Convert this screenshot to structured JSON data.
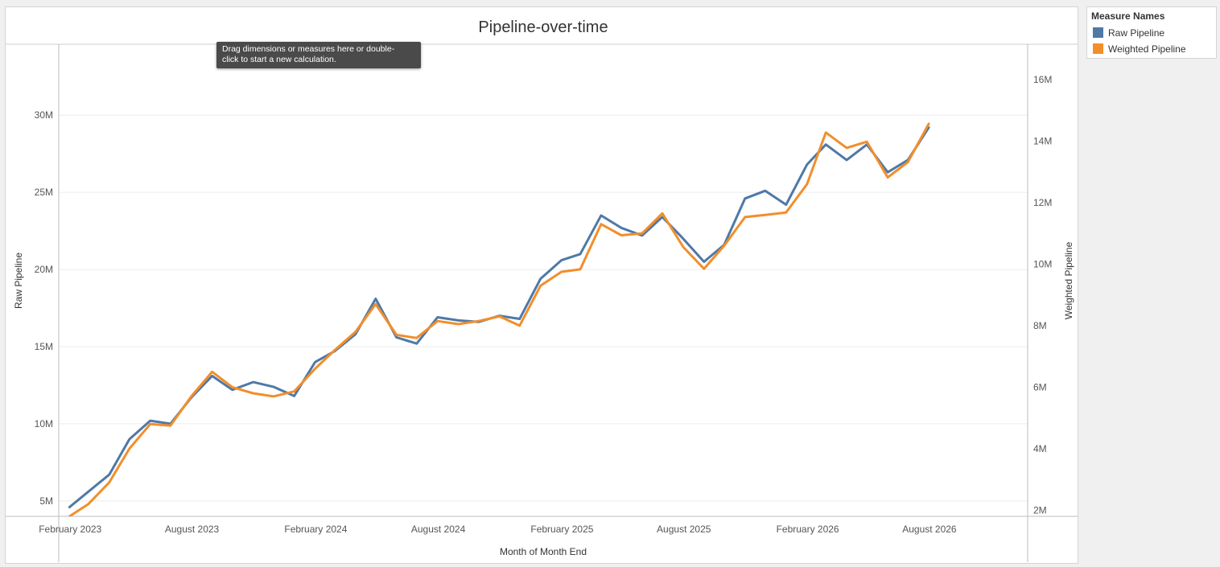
{
  "legend": {
    "title": "Measure Names",
    "items": [
      {
        "label": "Raw Pipeline",
        "color": "#4e79a7"
      },
      {
        "label": "Weighted Pipeline",
        "color": "#f28e2b"
      }
    ]
  },
  "tooltip": {
    "line1": "Drag dimensions or measures here or double-",
    "line2": "click to start a new calculation."
  },
  "chart_data": {
    "type": "line",
    "title": "Pipeline-over-time",
    "xlabel": "Month of Month End",
    "ylabel": "Raw Pipeline",
    "y2label": "Weighted Pipeline",
    "x_tick_labels": [
      "February 2023",
      "August 2023",
      "February 2024",
      "August 2024",
      "February 2025",
      "August 2025",
      "February 2026",
      "August 2026"
    ],
    "y_tick_labels": [
      "5M",
      "10M",
      "15M",
      "20M",
      "25M",
      "30M"
    ],
    "y2_tick_labels": [
      "2M",
      "4M",
      "6M",
      "8M",
      "10M",
      "12M",
      "14M",
      "16M"
    ],
    "y_ticks": [
      5000000,
      10000000,
      15000000,
      20000000,
      25000000,
      30000000
    ],
    "y2_ticks": [
      2000000,
      4000000,
      6000000,
      8000000,
      10000000,
      12000000,
      14000000,
      16000000
    ],
    "ylim": [
      4000000,
      34600000
    ],
    "y2lim": [
      1800000,
      17150000
    ],
    "x_range": [
      "2023-01-15",
      "2026-12-25"
    ],
    "grid": true,
    "legend_position": "right",
    "x": [
      "2023-01-31",
      "2023-02-28",
      "2023-03-31",
      "2023-04-30",
      "2023-05-31",
      "2023-06-30",
      "2023-07-31",
      "2023-08-31",
      "2023-09-30",
      "2023-10-31",
      "2023-11-30",
      "2023-12-31",
      "2024-01-31",
      "2024-02-29",
      "2024-03-31",
      "2024-04-30",
      "2024-05-31",
      "2024-06-30",
      "2024-07-31",
      "2024-08-31",
      "2024-09-30",
      "2024-10-31",
      "2024-11-30",
      "2024-12-31",
      "2025-01-31",
      "2025-02-28",
      "2025-03-31",
      "2025-04-30",
      "2025-05-31",
      "2025-06-30",
      "2025-07-31",
      "2025-08-31",
      "2025-09-30",
      "2025-10-31",
      "2025-11-30",
      "2025-12-31",
      "2026-01-31",
      "2026-02-28",
      "2026-03-31",
      "2026-04-30",
      "2026-05-31",
      "2026-06-30",
      "2026-07-31"
    ],
    "series": [
      {
        "name": "Raw Pipeline",
        "axis": "left",
        "color": "#4e79a7",
        "values": [
          4600000,
          5600000,
          6700000,
          9000000,
          10200000,
          10000000,
          11700000,
          13100000,
          12200000,
          12700000,
          12400000,
          11800000,
          14000000,
          14700000,
          15800000,
          18100000,
          15600000,
          15200000,
          16900000,
          16700000,
          16600000,
          17000000,
          16800000,
          19400000,
          20600000,
          21000000,
          23500000,
          22700000,
          22200000,
          23400000,
          22000000,
          20500000,
          21600000,
          24600000,
          25100000,
          24200000,
          26800000,
          28100000,
          27100000,
          28100000,
          26300000,
          27100000,
          29200000
        ]
      },
      {
        "name": "Weighted Pipeline",
        "axis": "right",
        "color": "#f28e2b",
        "values": [
          1800000,
          2200000,
          2900000,
          4000000,
          4800000,
          4750000,
          5700000,
          6500000,
          6000000,
          5800000,
          5700000,
          5860000,
          6600000,
          7200000,
          7800000,
          8700000,
          7700000,
          7600000,
          8150000,
          8050000,
          8150000,
          8300000,
          8000000,
          9300000,
          9750000,
          9830000,
          11300000,
          10940000,
          11000000,
          11650000,
          10560000,
          9850000,
          10600000,
          11530000,
          11600000,
          11680000,
          12600000,
          14280000,
          13780000,
          13980000,
          12820000,
          13320000,
          14560000
        ]
      }
    ]
  }
}
